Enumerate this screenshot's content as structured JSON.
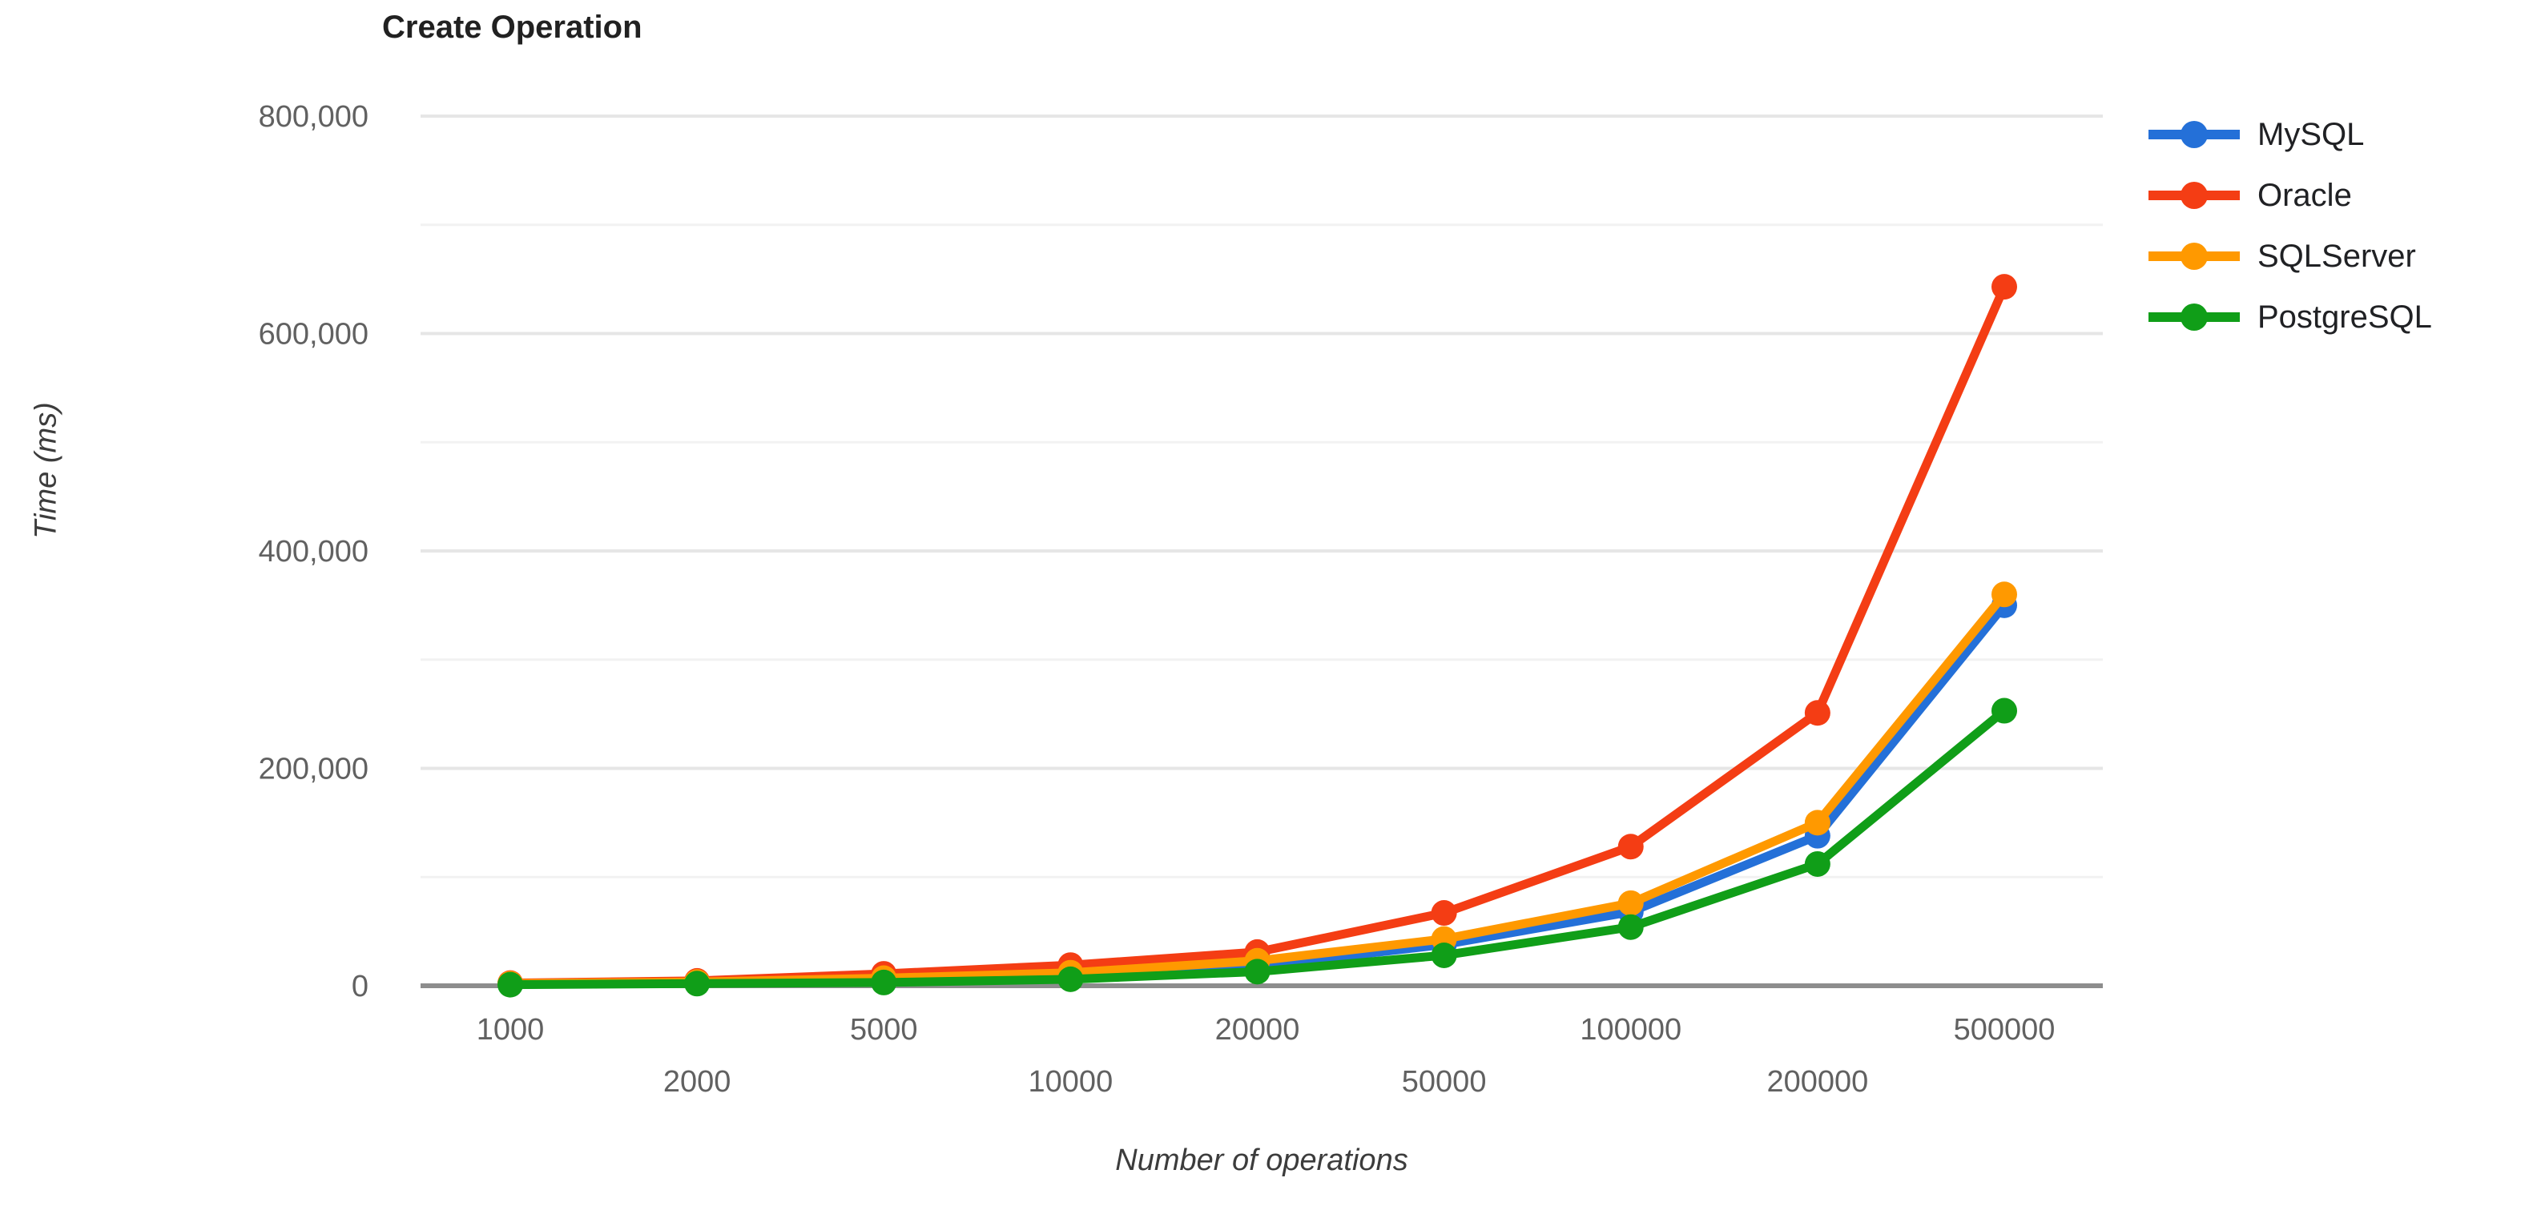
{
  "chart_data": {
    "type": "line",
    "title": "Create Operation",
    "xlabel": "Number of operations",
    "ylabel": "Time (ms)",
    "categories": [
      1000,
      2000,
      5000,
      10000,
      20000,
      50000,
      100000,
      200000,
      500000
    ],
    "series": [
      {
        "name": "MySQL",
        "color": "#2470d8",
        "values": [
          1500,
          3000,
          5500,
          9000,
          18000,
          38000,
          68000,
          138000,
          350000
        ]
      },
      {
        "name": "Oracle",
        "color": "#f43d14",
        "values": [
          2500,
          4500,
          11000,
          19000,
          31000,
          67000,
          128000,
          251000,
          643000
        ]
      },
      {
        "name": "SQLServer",
        "color": "#ff9900",
        "values": [
          2000,
          3500,
          7000,
          12000,
          23000,
          43000,
          76000,
          150000,
          360000
        ]
      },
      {
        "name": "PostgreSQL",
        "color": "#109e18",
        "values": [
          1000,
          2000,
          3000,
          6000,
          13000,
          28000,
          54000,
          112000,
          253000
        ]
      }
    ],
    "ylim": [
      0,
      800000
    ],
    "yticks": [
      0,
      200000,
      400000,
      600000,
      800000
    ],
    "minor_yticks": [
      100000,
      300000,
      500000,
      700000
    ],
    "ytick_format": "thousands-comma",
    "grid": true,
    "legend_position": "right",
    "style": {
      "axis_line_color": "#8d8d8d",
      "major_grid_color": "#e6e6e6",
      "minor_grid_color": "#f2f2f2",
      "tick_label_color": "#616161",
      "title_color": "#212121",
      "legend_text_color": "#202124"
    }
  }
}
